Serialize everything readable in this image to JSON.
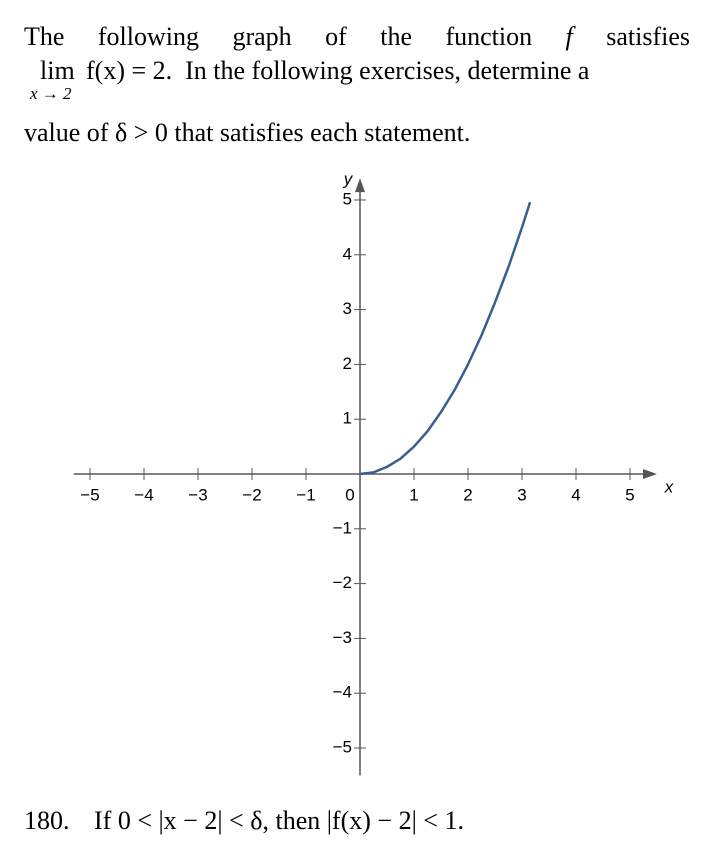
{
  "intro": {
    "line1": [
      "The",
      "following",
      "graph",
      "of",
      "the",
      "function",
      "f",
      "satisfies"
    ],
    "lim": "lim",
    "lim_sub": "x → 2",
    "line2_rest": "f(x) = 2.  In the following exercises, determine a",
    "line3": "value of δ > 0 that satisfies each statement."
  },
  "chart_data": {
    "type": "line",
    "x_label": "x",
    "y_label": "y",
    "x": [
      0,
      0.25,
      0.5,
      0.75,
      1,
      1.25,
      1.5,
      1.75,
      2,
      2.25,
      2.5,
      2.75,
      3,
      3.15
    ],
    "series": [
      {
        "color": "#3a5f8f",
        "values": [
          0,
          0.03,
          0.13,
          0.28,
          0.5,
          0.78,
          1.13,
          1.53,
          2,
          2.53,
          3.13,
          3.78,
          4.5,
          4.96
        ]
      }
    ],
    "xlim": [
      -5.3,
      5.5
    ],
    "ylim": [
      -5.5,
      5.4
    ],
    "xticks": [
      {
        "value": -5,
        "label": "−5"
      },
      {
        "value": -4,
        "label": "−4"
      },
      {
        "value": -3,
        "label": "−3"
      },
      {
        "value": -2,
        "label": "−2"
      },
      {
        "value": -1,
        "label": "−1"
      },
      0,
      1,
      2,
      3,
      4,
      5
    ],
    "yticks": [
      {
        "value": -5,
        "label": "−5"
      },
      {
        "value": -4,
        "label": "−4"
      },
      {
        "value": -3,
        "label": "−3"
      },
      {
        "value": -2,
        "label": "−2"
      },
      {
        "value": -1,
        "label": "−1"
      },
      1,
      2,
      3,
      4,
      5
    ]
  },
  "question": {
    "number": "180.",
    "text": "If 0 < |x − 2| < δ, then |f(x) − 2| < 1."
  }
}
